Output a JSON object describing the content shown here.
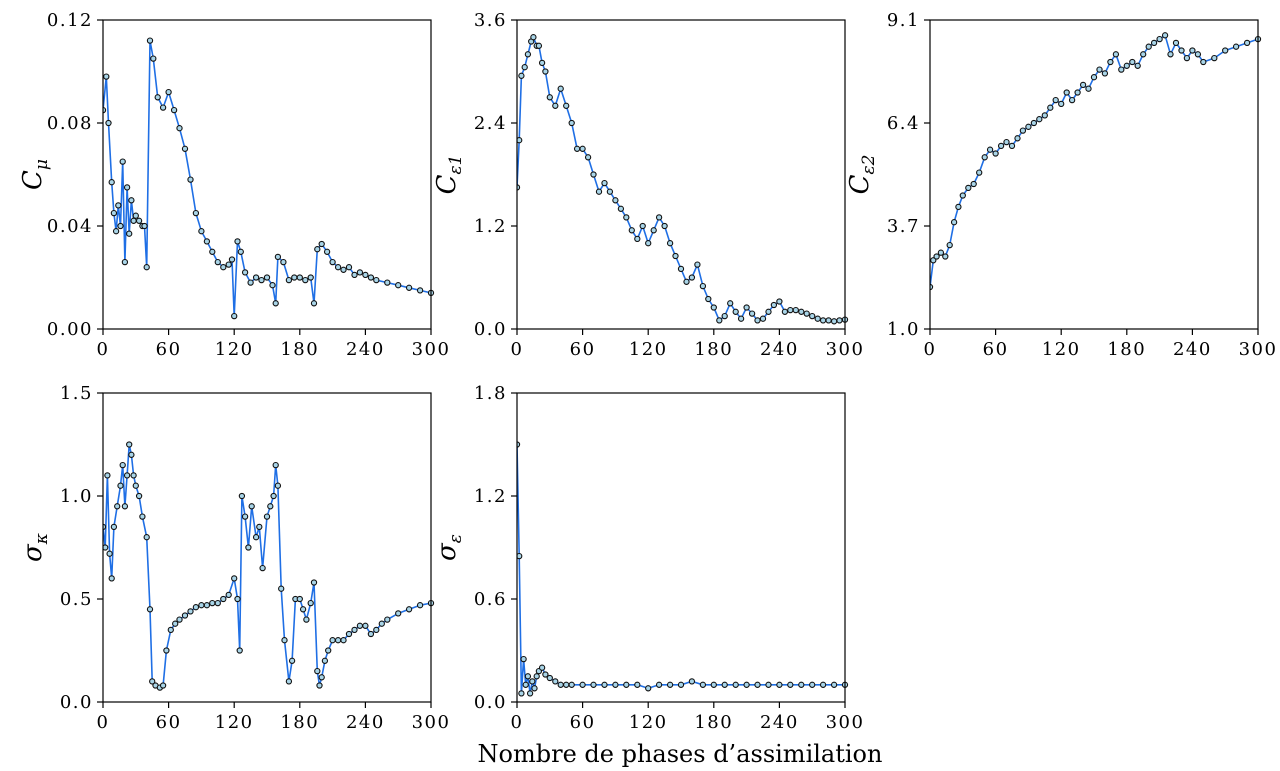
{
  "figure": {
    "xlabel": "Nombre de phases d’assimilation"
  },
  "chart_data": [
    {
      "type": "line",
      "ylabel_main": "C",
      "ylabel_sub": "μ",
      "xlim": [
        0,
        300
      ],
      "ylim": [
        0.0,
        0.12
      ],
      "xticks": [
        0,
        60,
        120,
        180,
        240,
        300
      ],
      "yticks": [
        0.0,
        0.04,
        0.08,
        0.12
      ],
      "ytick_labels": [
        "0.00",
        "0.04",
        "0.08",
        "0.12"
      ],
      "grid": false,
      "series": [
        {
          "x": [
            0,
            3,
            5,
            8,
            10,
            12,
            14,
            16,
            18,
            20,
            22,
            24,
            26,
            28,
            30,
            33,
            36,
            38,
            40,
            43,
            46,
            50,
            55,
            60,
            65,
            70,
            75,
            80,
            85,
            90,
            95,
            100,
            105,
            110,
            115,
            118,
            120,
            123,
            126,
            130,
            135,
            140,
            145,
            150,
            155,
            158,
            160,
            165,
            170,
            175,
            180,
            185,
            190,
            193,
            196,
            200,
            205,
            210,
            215,
            220,
            225,
            230,
            235,
            240,
            245,
            250,
            260,
            270,
            280,
            290,
            300
          ],
          "y": [
            0.085,
            0.098,
            0.08,
            0.057,
            0.045,
            0.038,
            0.048,
            0.04,
            0.065,
            0.026,
            0.055,
            0.037,
            0.05,
            0.042,
            0.044,
            0.042,
            0.04,
            0.04,
            0.024,
            0.112,
            0.105,
            0.09,
            0.086,
            0.092,
            0.085,
            0.078,
            0.07,
            0.058,
            0.045,
            0.038,
            0.034,
            0.03,
            0.026,
            0.024,
            0.025,
            0.027,
            0.005,
            0.034,
            0.03,
            0.022,
            0.018,
            0.02,
            0.019,
            0.02,
            0.017,
            0.01,
            0.028,
            0.026,
            0.019,
            0.02,
            0.02,
            0.019,
            0.02,
            0.01,
            0.031,
            0.033,
            0.03,
            0.026,
            0.024,
            0.023,
            0.024,
            0.021,
            0.022,
            0.021,
            0.02,
            0.019,
            0.018,
            0.017,
            0.016,
            0.015,
            0.014
          ]
        }
      ]
    },
    {
      "type": "line",
      "ylabel_main": "C",
      "ylabel_sub": "ε1",
      "xlim": [
        0,
        300
      ],
      "ylim": [
        0.0,
        3.6
      ],
      "xticks": [
        0,
        60,
        120,
        180,
        240,
        300
      ],
      "yticks": [
        0.0,
        1.2,
        2.4,
        3.6
      ],
      "ytick_labels": [
        "0.0",
        "1.2",
        "2.4",
        "3.6"
      ],
      "grid": false,
      "series": [
        {
          "x": [
            0,
            2,
            4,
            7,
            10,
            13,
            15,
            18,
            20,
            23,
            26,
            30,
            35,
            40,
            45,
            50,
            55,
            60,
            65,
            70,
            75,
            80,
            85,
            90,
            95,
            100,
            105,
            110,
            115,
            120,
            125,
            130,
            135,
            140,
            145,
            150,
            155,
            160,
            165,
            170,
            175,
            180,
            185,
            190,
            195,
            200,
            205,
            210,
            215,
            220,
            225,
            230,
            235,
            240,
            245,
            250,
            255,
            260,
            265,
            270,
            275,
            280,
            285,
            290,
            295,
            300
          ],
          "y": [
            1.65,
            2.2,
            2.95,
            3.05,
            3.2,
            3.35,
            3.4,
            3.3,
            3.3,
            3.1,
            3.0,
            2.7,
            2.6,
            2.8,
            2.6,
            2.4,
            2.1,
            2.1,
            2.0,
            1.8,
            1.6,
            1.7,
            1.6,
            1.5,
            1.4,
            1.3,
            1.15,
            1.05,
            1.2,
            1.0,
            1.15,
            1.3,
            1.2,
            1.0,
            0.85,
            0.7,
            0.55,
            0.6,
            0.75,
            0.5,
            0.35,
            0.25,
            0.1,
            0.15,
            0.3,
            0.2,
            0.12,
            0.25,
            0.18,
            0.1,
            0.12,
            0.2,
            0.28,
            0.32,
            0.2,
            0.22,
            0.22,
            0.2,
            0.18,
            0.15,
            0.12,
            0.1,
            0.1,
            0.09,
            0.1,
            0.11
          ]
        }
      ]
    },
    {
      "type": "line",
      "ylabel_main": "C",
      "ylabel_sub": "ε2",
      "xlim": [
        0,
        300
      ],
      "ylim": [
        1.0,
        9.1
      ],
      "xticks": [
        0,
        60,
        120,
        180,
        240,
        300
      ],
      "yticks": [
        1.0,
        3.7,
        6.4,
        9.1
      ],
      "ytick_labels": [
        "1.0",
        "3.7",
        "6.4",
        "9.1"
      ],
      "grid": false,
      "series": [
        {
          "x": [
            0,
            3,
            6,
            10,
            14,
            18,
            22,
            26,
            30,
            35,
            40,
            45,
            50,
            55,
            60,
            65,
            70,
            75,
            80,
            85,
            90,
            95,
            100,
            105,
            110,
            115,
            120,
            125,
            130,
            135,
            140,
            145,
            150,
            155,
            160,
            165,
            170,
            175,
            180,
            185,
            190,
            195,
            200,
            205,
            210,
            215,
            220,
            225,
            230,
            235,
            240,
            245,
            250,
            260,
            270,
            280,
            290,
            300
          ],
          "y": [
            2.1,
            2.8,
            2.9,
            3.0,
            2.9,
            3.2,
            3.8,
            4.2,
            4.5,
            4.7,
            4.8,
            5.1,
            5.5,
            5.7,
            5.6,
            5.8,
            5.9,
            5.8,
            6.0,
            6.2,
            6.3,
            6.4,
            6.5,
            6.6,
            6.8,
            7.0,
            6.9,
            7.2,
            7.0,
            7.2,
            7.4,
            7.3,
            7.6,
            7.8,
            7.7,
            8.0,
            8.2,
            7.8,
            7.9,
            8.0,
            7.9,
            8.2,
            8.4,
            8.5,
            8.6,
            8.7,
            8.2,
            8.5,
            8.3,
            8.1,
            8.3,
            8.2,
            8.0,
            8.1,
            8.3,
            8.4,
            8.5,
            8.6
          ]
        }
      ]
    },
    {
      "type": "line",
      "ylabel_main": "σ",
      "ylabel_sub": "κ",
      "xlim": [
        0,
        300
      ],
      "ylim": [
        0.0,
        1.5
      ],
      "xticks": [
        0,
        60,
        120,
        180,
        240,
        300
      ],
      "yticks": [
        0.0,
        0.5,
        1.0,
        1.5
      ],
      "ytick_labels": [
        "0.0",
        "0.5",
        "1.0",
        "1.5"
      ],
      "grid": false,
      "series": [
        {
          "x": [
            0,
            2,
            4,
            6,
            8,
            10,
            13,
            16,
            18,
            20,
            22,
            24,
            26,
            28,
            30,
            33,
            36,
            40,
            43,
            45,
            48,
            52,
            55,
            58,
            62,
            66,
            70,
            75,
            80,
            85,
            90,
            95,
            100,
            105,
            110,
            115,
            120,
            123,
            125,
            127,
            130,
            133,
            136,
            140,
            143,
            146,
            150,
            153,
            156,
            158,
            160,
            163,
            166,
            170,
            173,
            176,
            180,
            183,
            186,
            190,
            193,
            196,
            198,
            200,
            203,
            206,
            210,
            215,
            220,
            225,
            230,
            235,
            240,
            245,
            250,
            255,
            260,
            270,
            280,
            290,
            300
          ],
          "y": [
            0.85,
            0.75,
            1.1,
            0.72,
            0.6,
            0.85,
            0.95,
            1.05,
            1.15,
            0.95,
            1.1,
            1.25,
            1.2,
            1.1,
            1.05,
            1.0,
            0.9,
            0.8,
            0.45,
            0.1,
            0.08,
            0.07,
            0.08,
            0.25,
            0.35,
            0.38,
            0.4,
            0.42,
            0.44,
            0.46,
            0.47,
            0.47,
            0.48,
            0.48,
            0.5,
            0.52,
            0.6,
            0.5,
            0.25,
            1.0,
            0.9,
            0.75,
            0.95,
            0.8,
            0.85,
            0.65,
            0.9,
            0.95,
            1.0,
            1.15,
            1.05,
            0.55,
            0.3,
            0.1,
            0.2,
            0.5,
            0.5,
            0.45,
            0.4,
            0.48,
            0.58,
            0.15,
            0.08,
            0.12,
            0.2,
            0.25,
            0.3,
            0.3,
            0.3,
            0.33,
            0.35,
            0.37,
            0.37,
            0.33,
            0.35,
            0.38,
            0.4,
            0.43,
            0.45,
            0.47,
            0.48
          ]
        }
      ]
    },
    {
      "type": "line",
      "ylabel_main": "σ",
      "ylabel_sub": "ε",
      "xlim": [
        0,
        300
      ],
      "ylim": [
        0.0,
        1.8
      ],
      "xticks": [
        0,
        60,
        120,
        180,
        240,
        300
      ],
      "yticks": [
        0.0,
        0.6,
        1.2,
        1.8
      ],
      "ytick_labels": [
        "0.0",
        "0.6",
        "1.2",
        "1.8"
      ],
      "grid": false,
      "series": [
        {
          "x": [
            0,
            2,
            4,
            6,
            8,
            10,
            12,
            14,
            16,
            18,
            20,
            23,
            26,
            30,
            35,
            40,
            45,
            50,
            60,
            70,
            80,
            90,
            100,
            110,
            120,
            130,
            140,
            150,
            160,
            170,
            180,
            190,
            200,
            210,
            220,
            230,
            240,
            250,
            260,
            270,
            280,
            290,
            300
          ],
          "y": [
            1.5,
            0.85,
            0.05,
            0.25,
            0.1,
            0.15,
            0.05,
            0.12,
            0.08,
            0.15,
            0.18,
            0.2,
            0.16,
            0.14,
            0.12,
            0.1,
            0.1,
            0.1,
            0.1,
            0.1,
            0.1,
            0.1,
            0.1,
            0.1,
            0.08,
            0.1,
            0.1,
            0.1,
            0.12,
            0.1,
            0.1,
            0.1,
            0.1,
            0.1,
            0.1,
            0.1,
            0.1,
            0.1,
            0.1,
            0.1,
            0.1,
            0.1,
            0.1
          ]
        }
      ]
    }
  ]
}
